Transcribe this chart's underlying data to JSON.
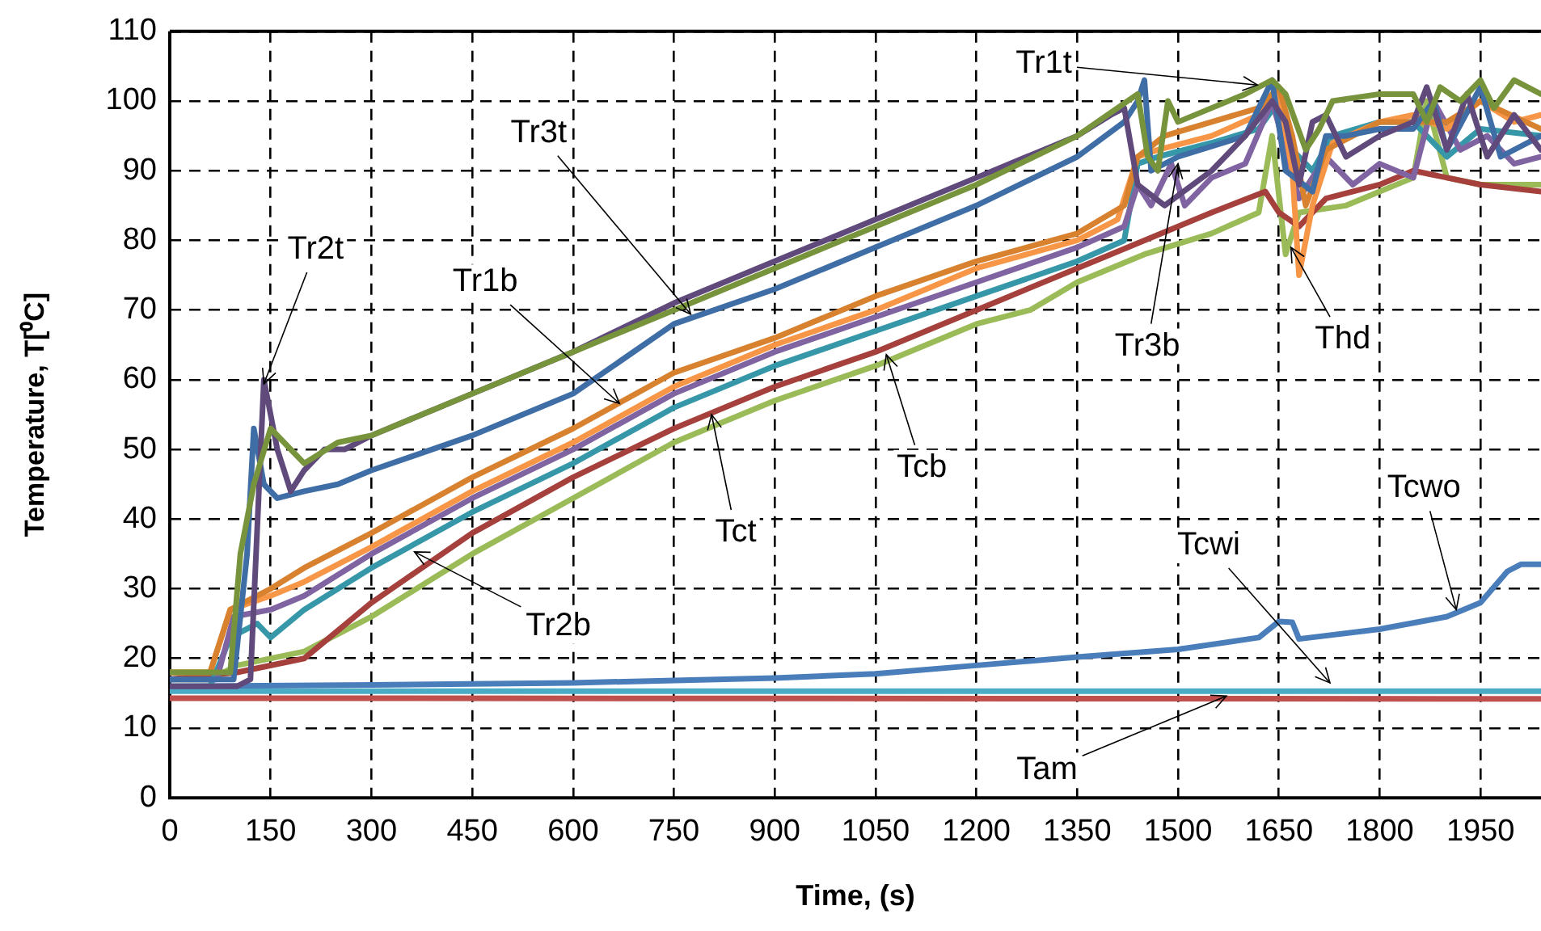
{
  "chart_data": {
    "type": "line",
    "xlabel": "Time, (s)",
    "ylabel": "Temperature, T[⁰C]",
    "xlim": [
      0,
      2040
    ],
    "xticks": [
      0,
      150,
      300,
      450,
      600,
      750,
      900,
      1050,
      1200,
      1350,
      1500,
      1650,
      1800,
      1950
    ],
    "ylim": [
      0,
      110
    ],
    "yticks": [
      0,
      10,
      20,
      30,
      40,
      50,
      60,
      70,
      80,
      90,
      100,
      110
    ],
    "grid": true,
    "legend": false,
    "marker": "none",
    "line_style": "solid",
    "series": [
      {
        "color": "#77933c",
        "x": [
          0,
          90,
          105,
          125,
          150,
          170,
          200,
          250,
          300,
          450,
          600,
          750,
          900,
          1050,
          1200,
          1350,
          1410,
          1440,
          1455,
          1470,
          1485,
          1500,
          1550,
          1600,
          1640,
          1660,
          1690,
          1710,
          1730,
          1800,
          1850,
          1870,
          1890,
          1920,
          1950,
          1970,
          2000,
          2040
        ],
        "values": [
          18,
          18,
          35,
          45,
          53,
          51,
          48,
          51,
          52,
          58,
          64,
          70,
          76,
          82,
          88,
          95,
          99,
          101,
          92,
          90,
          100,
          97,
          99,
          101,
          103,
          101,
          93,
          96,
          100,
          101,
          101,
          97,
          102,
          100,
          103,
          99,
          103,
          101
        ]
      },
      {
        "color": "#604a7b",
        "x": [
          0,
          100,
          120,
          140,
          160,
          180,
          200,
          230,
          260,
          300,
          450,
          600,
          750,
          900,
          1050,
          1200,
          1350,
          1400,
          1420,
          1440,
          1480,
          1550,
          1600,
          1640,
          1660,
          1680,
          1700,
          1720,
          1750,
          1800,
          1850,
          1870,
          1900,
          1930,
          1960,
          2000,
          2040
        ],
        "values": [
          16,
          16,
          17,
          60,
          50,
          44,
          47,
          50,
          50,
          52,
          58,
          64,
          71,
          77,
          83,
          89,
          95,
          98,
          99,
          88,
          85,
          90,
          95,
          100,
          97,
          88,
          97,
          98,
          92,
          95,
          97,
          102,
          93,
          101,
          92,
          98,
          93
        ]
      },
      {
        "color": "#3f6ea6",
        "x": [
          0,
          95,
          115,
          125,
          140,
          160,
          200,
          250,
          300,
          450,
          600,
          750,
          900,
          1050,
          1200,
          1350,
          1420,
          1440,
          1450,
          1460,
          1500,
          1600,
          1640,
          1660,
          1700,
          1720,
          1750,
          1800,
          1850,
          1880,
          1900,
          1950,
          1980,
          2040
        ],
        "values": [
          17,
          17,
          35,
          53,
          45,
          43,
          44,
          45,
          47,
          52,
          58,
          68,
          73,
          79,
          85,
          92,
          97,
          100,
          103,
          90,
          92,
          95,
          103,
          90,
          87,
          95,
          95,
          96,
          96,
          100,
          93,
          102,
          92,
          95
        ]
      },
      {
        "color": "#d8812f",
        "x": [
          0,
          60,
          90,
          150,
          200,
          300,
          450,
          600,
          750,
          900,
          1050,
          1200,
          1350,
          1420,
          1440,
          1480,
          1550,
          1620,
          1650,
          1670,
          1690,
          1720,
          1800,
          1900,
          1950,
          2040
        ],
        "values": [
          18,
          18,
          27,
          30,
          33,
          38,
          46,
          53,
          61,
          66,
          72,
          77,
          81,
          85,
          92,
          95,
          97,
          99,
          102,
          95,
          85,
          93,
          97,
          97,
          100,
          96
        ]
      },
      {
        "color": "#f79646",
        "x": [
          0,
          60,
          90,
          150,
          200,
          300,
          450,
          600,
          750,
          900,
          1050,
          1200,
          1350,
          1410,
          1440,
          1470,
          1550,
          1620,
          1650,
          1670,
          1680,
          1700,
          1730,
          1800,
          1850,
          1900,
          1950,
          2000,
          2040
        ],
        "values": [
          18,
          18,
          27,
          29,
          31,
          36,
          44,
          51,
          59,
          65,
          70,
          76,
          80,
          83,
          92,
          93,
          95,
          98,
          101,
          90,
          75,
          85,
          94,
          97,
          98,
          96,
          100,
          97,
          98
        ]
      },
      {
        "color": "#8064a2",
        "x": [
          0,
          70,
          95,
          150,
          200,
          300,
          450,
          600,
          750,
          900,
          1050,
          1200,
          1350,
          1420,
          1440,
          1460,
          1490,
          1510,
          1550,
          1600,
          1640,
          1660,
          1680,
          1720,
          1760,
          1800,
          1850,
          1880,
          1920,
          1960,
          2000,
          2040
        ],
        "values": [
          17,
          17,
          26,
          27,
          29,
          35,
          43,
          50,
          58,
          64,
          69,
          74,
          79,
          82,
          88,
          85,
          91,
          85,
          89,
          91,
          100,
          93,
          86,
          92,
          88,
          91,
          89,
          100,
          93,
          95,
          91,
          92
        ]
      },
      {
        "color": "#3597a8",
        "x": [
          0,
          60,
          90,
          130,
          150,
          200,
          300,
          450,
          600,
          750,
          900,
          1050,
          1200,
          1350,
          1420,
          1440,
          1470,
          1550,
          1620,
          1650,
          1670,
          1700,
          1730,
          1800,
          1850,
          1900,
          1950,
          2040
        ],
        "values": [
          16,
          16,
          23,
          25,
          23,
          27,
          33,
          41,
          48,
          56,
          62,
          67,
          72,
          77,
          80,
          91,
          92,
          94,
          96,
          100,
          93,
          90,
          95,
          97,
          97,
          92,
          96,
          95
        ]
      },
      {
        "color": "#a5403c",
        "x": [
          0,
          100,
          200,
          300,
          450,
          600,
          750,
          900,
          1050,
          1200,
          1350,
          1450,
          1550,
          1630,
          1650,
          1680,
          1720,
          1800,
          1850,
          1900,
          1950,
          2040
        ],
        "values": [
          17,
          18,
          20,
          28,
          38,
          46,
          53,
          59,
          64,
          70,
          76,
          80,
          84,
          87,
          84,
          82,
          86,
          88,
          90,
          89,
          88,
          87
        ]
      },
      {
        "color": "#9bbb59",
        "x": [
          0,
          60,
          100,
          200,
          300,
          450,
          600,
          750,
          900,
          1050,
          1200,
          1280,
          1350,
          1450,
          1550,
          1620,
          1640,
          1660,
          1680,
          1750,
          1800,
          1850,
          1870,
          1900,
          1950,
          2040
        ],
        "values": [
          17,
          17,
          19,
          21,
          26,
          35,
          43,
          51,
          57,
          62,
          68,
          70,
          74,
          78,
          81,
          84,
          95,
          78,
          84,
          85,
          87,
          89,
          100,
          89,
          88,
          88
        ]
      },
      {
        "color": "#4a7ebb",
        "x": [
          0,
          300,
          600,
          900,
          1050,
          1200,
          1350,
          1500,
          1620,
          1650,
          1670,
          1680,
          1800,
          1900,
          1950,
          1990,
          2010,
          2040
        ],
        "values": [
          16,
          16.2,
          16.5,
          17.2,
          17.8,
          19,
          20.2,
          21.3,
          23,
          25.3,
          25.2,
          22.8,
          24.2,
          26,
          28,
          32.5,
          33.5,
          33.5
        ]
      },
      {
        "color": "#4bacc6",
        "x": [
          0,
          2040
        ],
        "values": [
          15.3,
          15.3
        ]
      },
      {
        "color": "#c0504d",
        "x": [
          0,
          2040
        ],
        "values": [
          14.3,
          14.2
        ]
      }
    ],
    "annotations": [
      {
        "text": "Tr2t",
        "x": 140,
        "y": 59.4
      },
      {
        "text": "Tr3t",
        "x": 775,
        "y": 69.4
      },
      {
        "text": "Tr1b",
        "x": 669,
        "y": 56.6
      },
      {
        "text": "Tct",
        "x": 806,
        "y": 55
      },
      {
        "text": "Tcb",
        "x": 1066,
        "y": 63.6
      },
      {
        "text": "Tr2b",
        "x": 364,
        "y": 35.3
      },
      {
        "text": "Tr1t",
        "x": 1618,
        "y": 102.3
      },
      {
        "text": "Tr3b",
        "x": 1500,
        "y": 91
      },
      {
        "text": "Thd",
        "x": 1668,
        "y": 79
      },
      {
        "text": "Tcwo",
        "x": 1914,
        "y": 27
      },
      {
        "text": "Tcwi",
        "x": 1726,
        "y": 16.5
      },
      {
        "text": "Tam",
        "x": 1572,
        "y": 14.6
      }
    ]
  }
}
